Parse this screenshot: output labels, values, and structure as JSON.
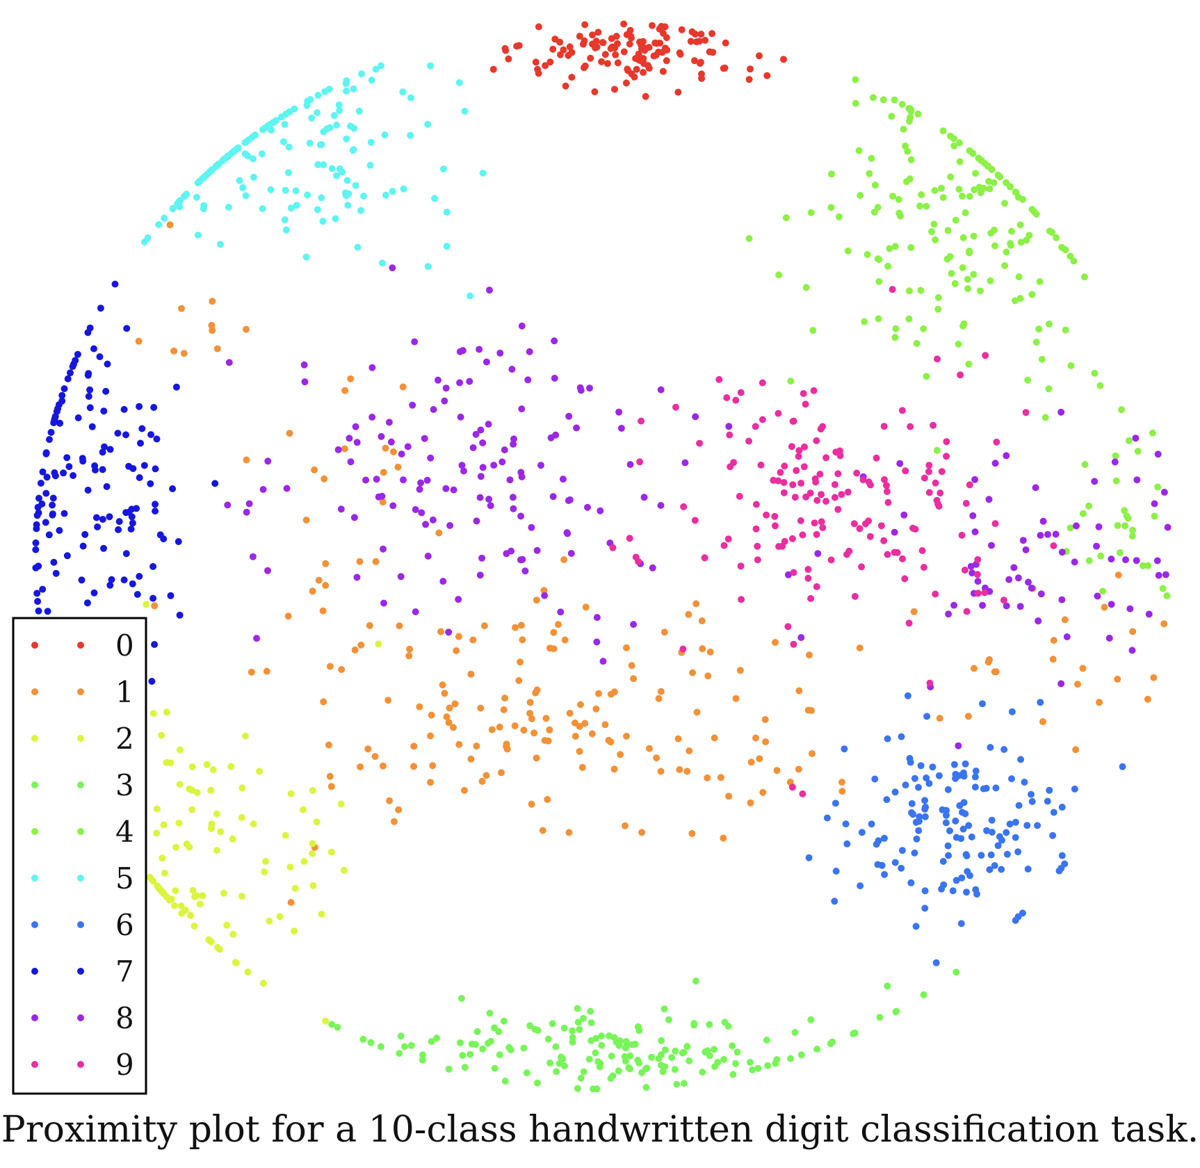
{
  "caption": "Proximity plot for a 10-class handwritten digit classification task.",
  "chart_data": {
    "type": "scatter",
    "title": "",
    "xlabel": "",
    "ylabel": "",
    "xlim": [
      -1,
      1
    ],
    "ylim": [
      -1,
      1
    ],
    "grid": false,
    "axes_visible": false,
    "legend": {
      "placement": "bottom-left",
      "boxed": true
    },
    "series": [
      {
        "name": "0",
        "color": "#e8372b",
        "clusters": [
          {
            "center": [
              0.05,
              0.91
            ],
            "spread": [
              0.1,
              0.035
            ],
            "count": 125
          }
        ]
      },
      {
        "name": "1",
        "color": "#f29138",
        "clusters": [
          {
            "center": [
              -0.06,
              -0.3
            ],
            "spread": [
              0.24,
              0.11
            ],
            "count": 165
          },
          {
            "center": [
              -0.45,
              0.0
            ],
            "spread": [
              0.05,
              0.15
            ],
            "count": 20
          },
          {
            "center": [
              0.75,
              -0.17
            ],
            "spread": [
              0.15,
              0.09
            ],
            "count": 25
          },
          {
            "center": [
              -0.72,
              0.48
            ],
            "spread": [
              0.06,
              0.06
            ],
            "count": 10
          }
        ]
      },
      {
        "name": "2",
        "color": "#dcf43e",
        "clusters": [
          {
            "center": [
              -0.73,
              -0.55
            ],
            "spread": [
              0.14,
              0.14
            ],
            "count": 150
          }
        ]
      },
      {
        "name": "3",
        "color": "#78f45a",
        "clusters": [
          {
            "center": [
              0.0,
              -0.9
            ],
            "spread": [
              0.22,
              0.04
            ],
            "count": 160
          }
        ]
      },
      {
        "name": "4",
        "color": "#8cf046",
        "clusters": [
          {
            "center": [
              0.6,
              0.6
            ],
            "spread": [
              0.12,
              0.14
            ],
            "count": 170
          },
          {
            "center": [
              0.9,
              0.12
            ],
            "spread": [
              0.04,
              0.12
            ],
            "count": 30
          }
        ]
      },
      {
        "name": "5",
        "color": "#5ef4f0",
        "clusters": [
          {
            "center": [
              -0.53,
              0.76
            ],
            "spread": [
              0.15,
              0.1
            ],
            "count": 165
          }
        ]
      },
      {
        "name": "6",
        "color": "#3a74f0",
        "clusters": [
          {
            "center": [
              0.6,
              -0.48
            ],
            "spread": [
              0.1,
              0.1
            ],
            "count": 145
          }
        ]
      },
      {
        "name": "7",
        "color": "#1616e0",
        "clusters": [
          {
            "center": [
              -0.89,
              0.12
            ],
            "spread": [
              0.08,
              0.18
            ],
            "count": 160
          }
        ]
      },
      {
        "name": "8",
        "color": "#9a28e6",
        "clusters": [
          {
            "center": [
              -0.23,
              0.15
            ],
            "spread": [
              0.18,
              0.16
            ],
            "count": 145
          },
          {
            "center": [
              0.75,
              0.0
            ],
            "spread": [
              0.14,
              0.13
            ],
            "count": 70
          }
        ]
      },
      {
        "name": "9",
        "color": "#ea2ea0",
        "clusters": [
          {
            "center": [
              0.39,
              0.1
            ],
            "spread": [
              0.17,
              0.13
            ],
            "count": 165
          }
        ]
      }
    ]
  }
}
